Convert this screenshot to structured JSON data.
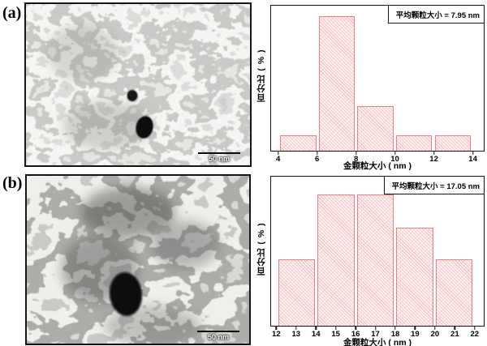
{
  "figure": {
    "background": "#ffffff",
    "panels": [
      {
        "label": "(a)",
        "tem": {
          "scale_bar_label": "50 nm"
        }
      },
      {
        "label": "(b)",
        "tem": {
          "scale_bar_label": "50 nm"
        }
      }
    ]
  },
  "colors": {
    "bar_border": "#ee7f85",
    "bar_fill": "#fdf3f4",
    "frame": "#141414",
    "figure_background": "#ffffff"
  },
  "chart_data": [
    {
      "type": "bar",
      "panel": "(a)",
      "annotation": "平均颗粒大小 = 7.95 nm",
      "mean_particle_size_nm": 7.95,
      "xlabel": "金颗粒大小 ( nm )",
      "ylabel": "百分比 ( % )",
      "bin_edges": [
        4,
        6,
        8,
        10,
        12,
        14
      ],
      "values": [
        10.5,
        93,
        30.5,
        10.5,
        10.5
      ],
      "x_ticks": [
        4,
        6,
        8,
        10,
        12,
        14
      ],
      "xlim": [
        3.6,
        14.6
      ],
      "ylim": [
        0,
        100
      ],
      "y_tick_labels": "none",
      "grid": false,
      "legend": "none",
      "bar_style": "pink diagonal hatch, pink border"
    },
    {
      "type": "bar",
      "panel": "(b)",
      "annotation": "平均颗粒大小 = 17.05 nm",
      "mean_particle_size_nm": 17.05,
      "xlabel": "金颗粒大小 ( nm )",
      "ylabel": "百分比 ( % )",
      "bin_edges": [
        12,
        14,
        16,
        18,
        20,
        22
      ],
      "values": [
        44.5,
        88,
        88,
        66,
        44.5
      ],
      "x_ticks": [
        12,
        13,
        14,
        15,
        16,
        17,
        18,
        19,
        20,
        21,
        22
      ],
      "xlim": [
        11.7,
        22.5
      ],
      "ylim": [
        0,
        100
      ],
      "y_tick_labels": "none",
      "grid": false,
      "legend": "none",
      "bar_style": "pink diagonal hatch, pink border"
    }
  ]
}
